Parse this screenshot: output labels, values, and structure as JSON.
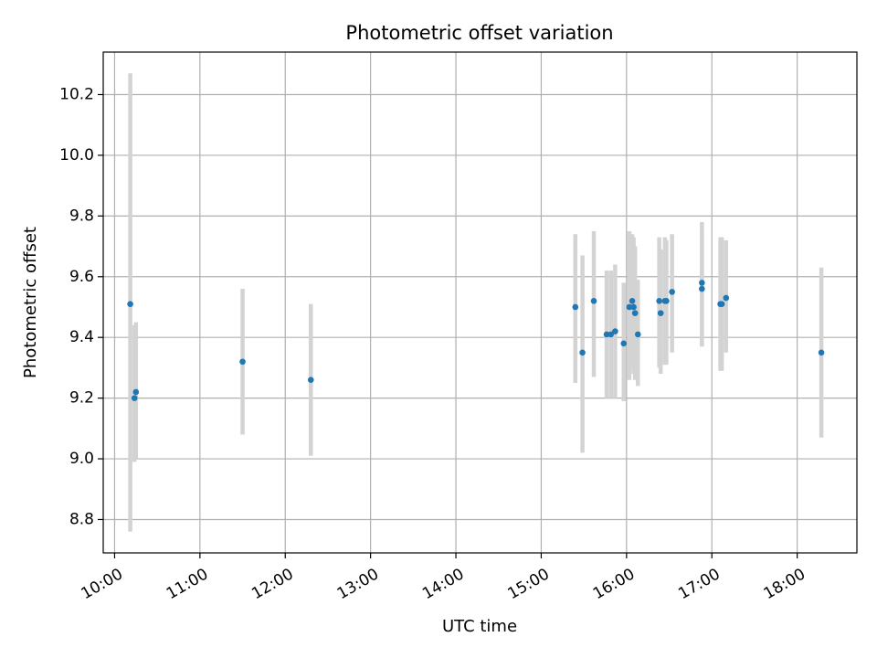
{
  "chart_data": {
    "type": "scatter",
    "title": "Photometric offset variation",
    "xlabel": "UTC time",
    "ylabel": "Photometric offset",
    "x_tick_labels": [
      "10:00",
      "11:00",
      "12:00",
      "13:00",
      "14:00",
      "15:00",
      "16:00",
      "17:00",
      "18:00"
    ],
    "y_ticks": [
      8.8,
      9.0,
      9.2,
      9.4,
      9.6,
      9.8,
      10.0,
      10.2
    ],
    "y_tick_labels": [
      "8.8",
      "9.0",
      "9.2",
      "9.4",
      "9.6",
      "9.8",
      "10.0",
      "10.2"
    ],
    "xlim": [
      "09:52",
      "18:42"
    ],
    "ylim": [
      8.69,
      10.34
    ],
    "grid": true,
    "marker_color": "#1f77b4",
    "errorbar_color": "#d3d3d3",
    "points": [
      {
        "x": "10:11",
        "y": 9.51,
        "ylow": 8.76,
        "yhigh": 10.27
      },
      {
        "x": "10:14",
        "y": 9.2,
        "ylow": 8.99,
        "yhigh": 9.44
      },
      {
        "x": "10:15",
        "y": 9.22,
        "ylow": 9.0,
        "yhigh": 9.45
      },
      {
        "x": "11:30",
        "y": 9.32,
        "ylow": 9.08,
        "yhigh": 9.56
      },
      {
        "x": "12:18",
        "y": 9.26,
        "ylow": 9.01,
        "yhigh": 9.51
      },
      {
        "x": "15:24",
        "y": 9.5,
        "ylow": 9.25,
        "yhigh": 9.74
      },
      {
        "x": "15:29",
        "y": 9.35,
        "ylow": 9.02,
        "yhigh": 9.67
      },
      {
        "x": "15:37",
        "y": 9.52,
        "ylow": 9.27,
        "yhigh": 9.75
      },
      {
        "x": "15:46",
        "y": 9.41,
        "ylow": 9.2,
        "yhigh": 9.62
      },
      {
        "x": "15:49",
        "y": 9.41,
        "ylow": 9.2,
        "yhigh": 9.62
      },
      {
        "x": "15:52",
        "y": 9.42,
        "ylow": 9.2,
        "yhigh": 9.64
      },
      {
        "x": "15:58",
        "y": 9.38,
        "ylow": 9.19,
        "yhigh": 9.58
      },
      {
        "x": "16:02",
        "y": 9.5,
        "ylow": 9.26,
        "yhigh": 9.75
      },
      {
        "x": "16:04",
        "y": 9.52,
        "ylow": 9.3,
        "yhigh": 9.74
      },
      {
        "x": "16:05",
        "y": 9.5,
        "ylow": 9.28,
        "yhigh": 9.73
      },
      {
        "x": "16:06",
        "y": 9.48,
        "ylow": 9.26,
        "yhigh": 9.7
      },
      {
        "x": "16:08",
        "y": 9.41,
        "ylow": 9.24,
        "yhigh": 9.59
      },
      {
        "x": "16:23",
        "y": 9.52,
        "ylow": 9.3,
        "yhigh": 9.73
      },
      {
        "x": "16:24",
        "y": 9.48,
        "ylow": 9.28,
        "yhigh": 9.69
      },
      {
        "x": "16:27",
        "y": 9.52,
        "ylow": 9.31,
        "yhigh": 9.73
      },
      {
        "x": "16:28",
        "y": 9.52,
        "ylow": 9.31,
        "yhigh": 9.72
      },
      {
        "x": "16:32",
        "y": 9.55,
        "ylow": 9.35,
        "yhigh": 9.74
      },
      {
        "x": "16:53",
        "y": 9.58,
        "ylow": 9.37,
        "yhigh": 9.78
      },
      {
        "x": "16:53",
        "y": 9.56,
        "ylow": 9.37,
        "yhigh": 9.76
      },
      {
        "x": "17:06",
        "y": 9.51,
        "ylow": 9.29,
        "yhigh": 9.73
      },
      {
        "x": "17:07",
        "y": 9.51,
        "ylow": 9.29,
        "yhigh": 9.73
      },
      {
        "x": "17:10",
        "y": 9.53,
        "ylow": 9.35,
        "yhigh": 9.72
      },
      {
        "x": "18:17",
        "y": 9.35,
        "ylow": 9.07,
        "yhigh": 9.63
      }
    ]
  }
}
